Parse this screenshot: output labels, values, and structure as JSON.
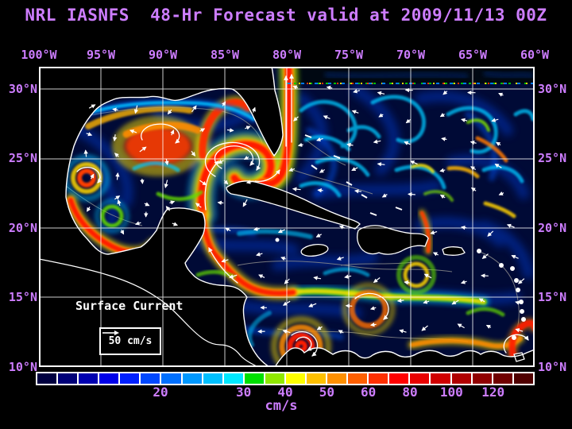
{
  "title": "NRL IASNFS  48-Hr Forecast valid at 2009/11/13 00Z",
  "colors": {
    "outer_label_text": "#CD7DFF",
    "annotation_text": "#FFFFFF",
    "background": "#000000",
    "ocean_base": "#000A36",
    "grid_line": "#FFFFFF",
    "coastline": "#FFFFFF"
  },
  "map": {
    "lon_labels": [
      "100°W",
      "95°W",
      "90°W",
      "85°W",
      "80°W",
      "75°W",
      "70°W",
      "65°W",
      "60°W"
    ],
    "lat_labels": [
      "30°N",
      "25°N",
      "20°N",
      "15°N",
      "10°N"
    ],
    "annotation": {
      "label": "Surface Current",
      "scale_value": "50 cm/s"
    }
  },
  "colorbar": {
    "units": "cm/s",
    "tick_labels": [
      "20",
      "30",
      "40",
      "50",
      "60",
      "80",
      "100",
      "120"
    ],
    "tick_boundaries": [
      6,
      10,
      12,
      14,
      16,
      18,
      20,
      22
    ],
    "num_cells": 24,
    "cell_colors": [
      "#000040",
      "#000078",
      "#0000B0",
      "#0000E8",
      "#0020FF",
      "#0048FF",
      "#0070FF",
      "#0098FF",
      "#00C0FF",
      "#00E8FF",
      "#00E000",
      "#90E800",
      "#FFFF00",
      "#FFC000",
      "#FF9000",
      "#FF6000",
      "#FF3000",
      "#FF0000",
      "#E80000",
      "#D00000",
      "#B00000",
      "#900000",
      "#700000",
      "#500000"
    ]
  }
}
